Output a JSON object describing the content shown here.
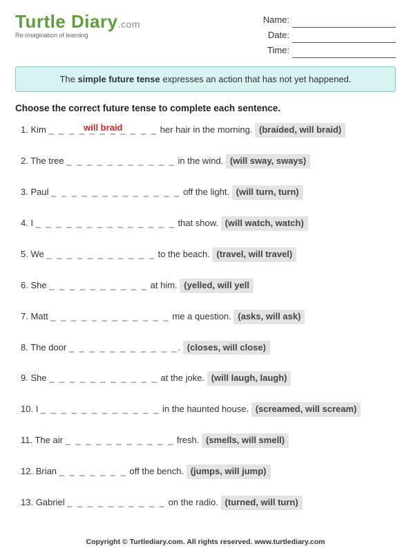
{
  "logo": {
    "brand": "Turtle Diary",
    "dotcom": ".com",
    "tagline": "Re-Imagination of learning"
  },
  "meta": {
    "name_label": "Name:",
    "date_label": "Date:",
    "time_label": "Time:"
  },
  "intro": {
    "prefix": "The ",
    "bold": "simple future tense",
    "suffix": " expresses an action that has not yet happened."
  },
  "instruction": "Choose the correct future tense to complete each sentence.",
  "blank_pattern": "_ _ _ _ _ _ _ _ _ _ _",
  "questions": [
    {
      "num": "1.",
      "pre": "Kim ",
      "blank": "_ _ _ _ _ _ _ _ _ _ _",
      "answer": "will braid",
      "post": " her hair in the morning.  ",
      "opts": "(braided, will braid)"
    },
    {
      "num": "2.",
      "pre": "The tree ",
      "blank": "_ _ _ _ _ _ _ _ _ _ _",
      "answer": "",
      "post": " in the wind.  ",
      "opts": "(will sway, sways)"
    },
    {
      "num": "3.",
      "pre": "Paul ",
      "blank": "_ _ _ _ _ _ _ _ _ _ _ _ _",
      "answer": "",
      "post": " off the light.  ",
      "opts": "(will turn, turn)"
    },
    {
      "num": "4.",
      "pre": "I ",
      "blank": "_ _ _ _ _ _ _ _ _ _ _ _ _ _",
      "answer": "",
      "post": " that show.  ",
      "opts": "(will watch, watch)"
    },
    {
      "num": "5.",
      "pre": "We ",
      "blank": "_ _ _ _ _ _ _ _ _ _ _",
      "answer": "",
      "post": " to the beach.  ",
      "opts": "(travel, will travel)"
    },
    {
      "num": "6.",
      "pre": "She ",
      "blank": "_ _ _ _ _ _ _ _ _ _",
      "answer": "",
      "post": " at him.  ",
      "opts": "(yelled, will yell"
    },
    {
      "num": "7.",
      "pre": "Matt ",
      "blank": "_ _ _ _ _ _ _ _ _ _ _ _",
      "answer": "",
      "post": " me a question.  ",
      "opts": "(asks, will ask)"
    },
    {
      "num": "8.",
      "pre": "The door ",
      "blank": "_ _ _ _ _ _ _ _ _ _ _",
      "answer": "",
      "post": ".  ",
      "opts": "(closes, will close)"
    },
    {
      "num": "9.",
      "pre": "She ",
      "blank": "_ _ _ _ _ _ _ _ _ _ _",
      "answer": "",
      "post": " at the joke.  ",
      "opts": "(will laugh, laugh)"
    },
    {
      "num": "10.",
      "pre": "I ",
      "blank": "_ _ _ _ _ _ _ _ _ _ _ _",
      "answer": "",
      "post": " in the haunted house.  ",
      "opts": "(screamed, will scream)"
    },
    {
      "num": "11.",
      "pre": "The air ",
      "blank": "_ _ _ _ _ _ _ _ _ _ _",
      "answer": "",
      "post": " fresh.  ",
      "opts": "(smells, will smell)"
    },
    {
      "num": "12.",
      "pre": "Brian ",
      "blank": "_ _ _ _ _ _ _",
      "answer": "",
      "post": " off the bench.  ",
      "opts": "(jumps, will jump)"
    },
    {
      "num": "13.",
      "pre": "Gabriel ",
      "blank": "_ _ _ _ _ _ _ _ _ _",
      "answer": "",
      "post": " on the radio.  ",
      "opts": "(turned, will turn)"
    }
  ],
  "footer": "Copyright © Turtlediary.com. All rights reserved. www.turtlediary.com",
  "colors": {
    "brand_green": "#5da03a",
    "box_bg": "#d6f2f1",
    "box_border": "#7ec9c6",
    "answer_red": "#d8232a",
    "opts_bg": "#e3e3e3"
  }
}
